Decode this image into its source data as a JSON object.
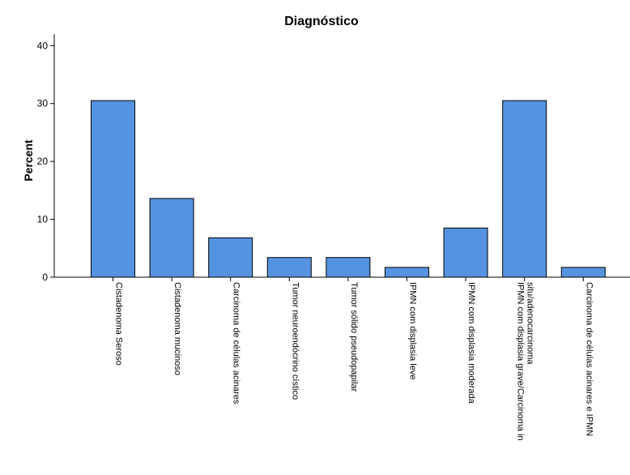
{
  "chart_data": {
    "type": "bar",
    "title": "Diagnóstico",
    "xlabel": "",
    "ylabel": "Percent",
    "ylim": [
      0,
      42
    ],
    "yticks": [
      0,
      10,
      20,
      30,
      40
    ],
    "grid": false,
    "bar_color": "#5593E0",
    "categories": [
      [
        "Cistadenoma Seroso"
      ],
      [
        "Cistadenoma mucinoso"
      ],
      [
        "Carcinoma de células acinares"
      ],
      [
        "Tumor neuroendócrino cístico"
      ],
      [
        "Tumor sólido pseudopapilar"
      ],
      [
        "IPMN com displasia leve"
      ],
      [
        "IPMN com displasia moderada"
      ],
      [
        "IPMN com displasia grave/Carcinoma in",
        "situ/adenocarcinoma"
      ],
      [
        "Carcinoma de células acinares e IPMN"
      ]
    ],
    "values": [
      30.5,
      13.6,
      6.8,
      3.4,
      3.4,
      1.7,
      8.5,
      30.5,
      1.7
    ]
  }
}
